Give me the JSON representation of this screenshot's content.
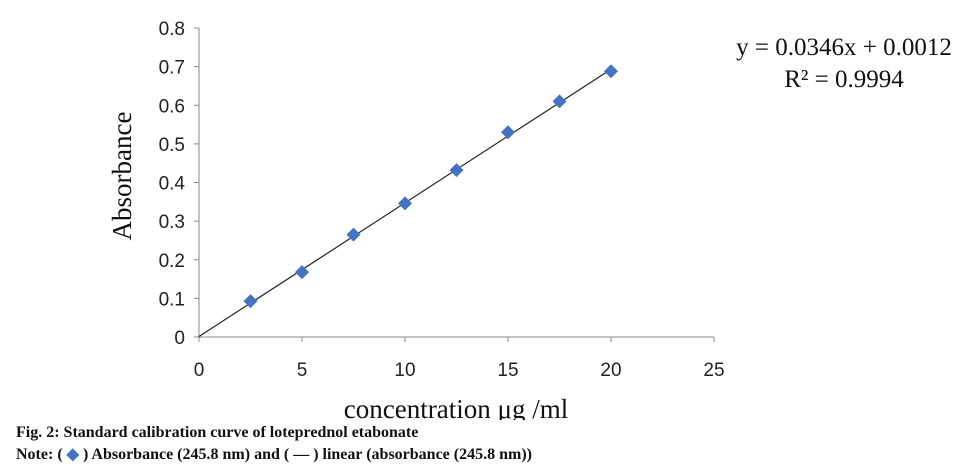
{
  "chart_data": {
    "type": "scatter",
    "ylabel": "Absorbance",
    "xlabel": "concentration μg /ml",
    "xlim": [
      0,
      25
    ],
    "ylim": [
      0,
      0.8
    ],
    "xticks": [
      "0",
      "5",
      "10",
      "15",
      "20",
      "25"
    ],
    "yticks": [
      "0",
      "0.1",
      "0.2",
      "0.3",
      "0.4",
      "0.5",
      "0.6",
      "0.7",
      "0.8"
    ],
    "series": [
      {
        "marker": "diamond",
        "color": "#4472c4",
        "points": [
          {
            "x": 2.5,
            "y": 0.093
          },
          {
            "x": 5,
            "y": 0.168
          },
          {
            "x": 7.5,
            "y": 0.265
          },
          {
            "x": 10,
            "y": 0.346
          },
          {
            "x": 12.5,
            "y": 0.432
          },
          {
            "x": 15,
            "y": 0.53
          },
          {
            "x": 17.5,
            "y": 0.61
          },
          {
            "x": 20,
            "y": 0.688
          }
        ]
      }
    ],
    "trendline": {
      "color": "#222222",
      "slope": 0.0346,
      "intercept": 0.0012,
      "x_range": [
        0,
        20
      ],
      "equation_text": "y = 0.0346x + 0.0012",
      "r2_text": "R² = 0.9994"
    },
    "grid": false
  },
  "caption": {
    "line1": "Fig. 2: Standard calibration curve of loteprednol etabonate",
    "line2_prefix": "Note: (",
    "line2_marker": "◆",
    "line2_suffix": ") Absorbance (245.8 nm) and ( — ) linear (absorbance (245.8 nm))"
  }
}
